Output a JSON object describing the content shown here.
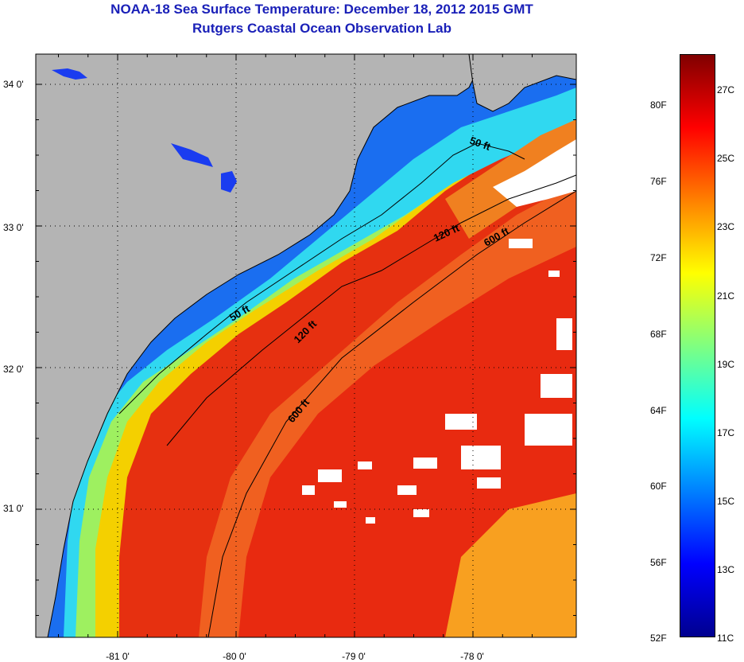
{
  "title": {
    "line1": "NOAA-18 Sea Surface Temperature:  December 18, 2012 2015 GMT",
    "line2": "Rutgers Coastal Ocean Observation Lab"
  },
  "map": {
    "lon_ticks": [
      {
        "value": -81,
        "label": "-81 0'"
      },
      {
        "value": -80,
        "label": "-80 0'"
      },
      {
        "value": -79,
        "label": "-79 0'"
      },
      {
        "value": -78,
        "label": "-78 0'"
      }
    ],
    "lat_ticks": [
      {
        "value": 34,
        "label": "34 0'"
      },
      {
        "value": 33,
        "label": "33 0'"
      },
      {
        "value": 32,
        "label": "32 0'"
      },
      {
        "value": 31,
        "label": "31 0'"
      }
    ],
    "contours": [
      "50 ft",
      "120 ft",
      "600 ft"
    ],
    "colors": {
      "land": "#b4b4b4",
      "coastline": "#000000",
      "cloud": "#ffffff",
      "grid": "#000000"
    }
  },
  "colorbar": {
    "fahrenheit_labels": [
      "80F",
      "76F",
      "72F",
      "68F",
      "64F",
      "60F",
      "56F",
      "52F"
    ],
    "celsius_labels": [
      "27C",
      "25C",
      "23C",
      "21C",
      "19C",
      "17C",
      "15C",
      "13C",
      "11C"
    ],
    "colors": [
      "#00008f",
      "#0000ff",
      "#0080ff",
      "#00ffff",
      "#80ff80",
      "#ffff00",
      "#ff8000",
      "#ff0000",
      "#800000"
    ]
  }
}
